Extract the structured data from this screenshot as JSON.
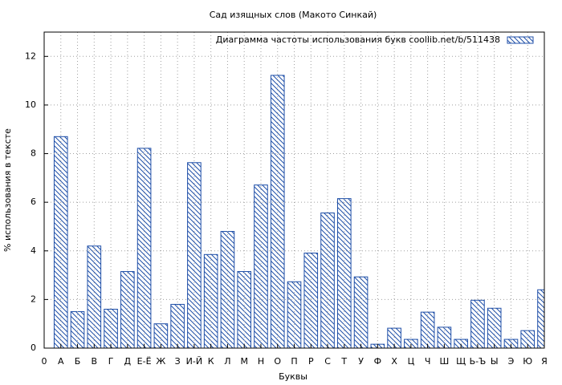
{
  "chart_data": {
    "type": "bar",
    "title": "Сад изящных слов (Макото Синкай)",
    "xlabel": "Буквы",
    "ylabel": "% использования в тексте",
    "categories": [
      "0",
      "А",
      "Б",
      "В",
      "Г",
      "Д",
      "Е-Ё",
      "Ж",
      "З",
      "И-Й",
      "К",
      "Л",
      "М",
      "Н",
      "О",
      "П",
      "Р",
      "С",
      "Т",
      "У",
      "Ф",
      "Х",
      "Ц",
      "Ч",
      "Ш",
      "Щ",
      "Ь-Ъ",
      "Ы",
      "Э",
      "Ю",
      "Я"
    ],
    "series": [
      {
        "name": "Диаграмма частоты использования букв  coollib.net/b/511438",
        "color": "#1f4fa8",
        "values": [
          null,
          8.7,
          1.5,
          4.2,
          1.6,
          3.15,
          8.22,
          1.0,
          1.8,
          7.63,
          3.85,
          4.8,
          3.15,
          6.71,
          11.22,
          2.73,
          3.91,
          5.56,
          6.15,
          2.93,
          0.16,
          0.82,
          0.36,
          1.48,
          0.86,
          0.36,
          1.97,
          1.64,
          0.36,
          0.72,
          2.4
        ]
      }
    ],
    "ylim": [
      0,
      13
    ],
    "yticks": [
      0,
      2,
      4,
      6,
      8,
      10,
      12
    ],
    "grid": true,
    "legend": "top-right"
  }
}
